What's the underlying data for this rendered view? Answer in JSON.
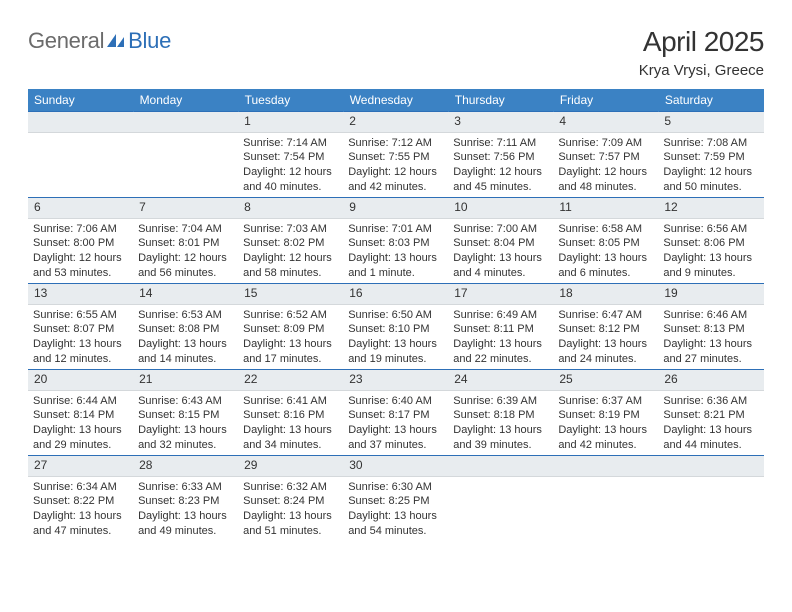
{
  "logo": {
    "text1": "General",
    "text2": "Blue"
  },
  "header": {
    "title": "April 2025",
    "location": "Krya Vrysi, Greece"
  },
  "colors": {
    "header_bg": "#3b82c4",
    "header_text": "#ffffff",
    "row_border": "#2d6fb7",
    "daynum_bg": "#e8ecef",
    "body_text": "#333333",
    "logo_gray": "#6b6b6b",
    "logo_blue": "#2d6fb7"
  },
  "typography": {
    "title_fontsize": 28,
    "location_fontsize": 15,
    "dayheader_fontsize": 12,
    "daynum_fontsize": 12,
    "body_fontsize": 11
  },
  "dayHeaders": [
    "Sunday",
    "Monday",
    "Tuesday",
    "Wednesday",
    "Thursday",
    "Friday",
    "Saturday"
  ],
  "weeks": [
    [
      {
        "n": "",
        "sunrise": "",
        "sunset": "",
        "daylight": ""
      },
      {
        "n": "",
        "sunrise": "",
        "sunset": "",
        "daylight": ""
      },
      {
        "n": "1",
        "sunrise": "Sunrise: 7:14 AM",
        "sunset": "Sunset: 7:54 PM",
        "daylight": "Daylight: 12 hours and 40 minutes."
      },
      {
        "n": "2",
        "sunrise": "Sunrise: 7:12 AM",
        "sunset": "Sunset: 7:55 PM",
        "daylight": "Daylight: 12 hours and 42 minutes."
      },
      {
        "n": "3",
        "sunrise": "Sunrise: 7:11 AM",
        "sunset": "Sunset: 7:56 PM",
        "daylight": "Daylight: 12 hours and 45 minutes."
      },
      {
        "n": "4",
        "sunrise": "Sunrise: 7:09 AM",
        "sunset": "Sunset: 7:57 PM",
        "daylight": "Daylight: 12 hours and 48 minutes."
      },
      {
        "n": "5",
        "sunrise": "Sunrise: 7:08 AM",
        "sunset": "Sunset: 7:59 PM",
        "daylight": "Daylight: 12 hours and 50 minutes."
      }
    ],
    [
      {
        "n": "6",
        "sunrise": "Sunrise: 7:06 AM",
        "sunset": "Sunset: 8:00 PM",
        "daylight": "Daylight: 12 hours and 53 minutes."
      },
      {
        "n": "7",
        "sunrise": "Sunrise: 7:04 AM",
        "sunset": "Sunset: 8:01 PM",
        "daylight": "Daylight: 12 hours and 56 minutes."
      },
      {
        "n": "8",
        "sunrise": "Sunrise: 7:03 AM",
        "sunset": "Sunset: 8:02 PM",
        "daylight": "Daylight: 12 hours and 58 minutes."
      },
      {
        "n": "9",
        "sunrise": "Sunrise: 7:01 AM",
        "sunset": "Sunset: 8:03 PM",
        "daylight": "Daylight: 13 hours and 1 minute."
      },
      {
        "n": "10",
        "sunrise": "Sunrise: 7:00 AM",
        "sunset": "Sunset: 8:04 PM",
        "daylight": "Daylight: 13 hours and 4 minutes."
      },
      {
        "n": "11",
        "sunrise": "Sunrise: 6:58 AM",
        "sunset": "Sunset: 8:05 PM",
        "daylight": "Daylight: 13 hours and 6 minutes."
      },
      {
        "n": "12",
        "sunrise": "Sunrise: 6:56 AM",
        "sunset": "Sunset: 8:06 PM",
        "daylight": "Daylight: 13 hours and 9 minutes."
      }
    ],
    [
      {
        "n": "13",
        "sunrise": "Sunrise: 6:55 AM",
        "sunset": "Sunset: 8:07 PM",
        "daylight": "Daylight: 13 hours and 12 minutes."
      },
      {
        "n": "14",
        "sunrise": "Sunrise: 6:53 AM",
        "sunset": "Sunset: 8:08 PM",
        "daylight": "Daylight: 13 hours and 14 minutes."
      },
      {
        "n": "15",
        "sunrise": "Sunrise: 6:52 AM",
        "sunset": "Sunset: 8:09 PM",
        "daylight": "Daylight: 13 hours and 17 minutes."
      },
      {
        "n": "16",
        "sunrise": "Sunrise: 6:50 AM",
        "sunset": "Sunset: 8:10 PM",
        "daylight": "Daylight: 13 hours and 19 minutes."
      },
      {
        "n": "17",
        "sunrise": "Sunrise: 6:49 AM",
        "sunset": "Sunset: 8:11 PM",
        "daylight": "Daylight: 13 hours and 22 minutes."
      },
      {
        "n": "18",
        "sunrise": "Sunrise: 6:47 AM",
        "sunset": "Sunset: 8:12 PM",
        "daylight": "Daylight: 13 hours and 24 minutes."
      },
      {
        "n": "19",
        "sunrise": "Sunrise: 6:46 AM",
        "sunset": "Sunset: 8:13 PM",
        "daylight": "Daylight: 13 hours and 27 minutes."
      }
    ],
    [
      {
        "n": "20",
        "sunrise": "Sunrise: 6:44 AM",
        "sunset": "Sunset: 8:14 PM",
        "daylight": "Daylight: 13 hours and 29 minutes."
      },
      {
        "n": "21",
        "sunrise": "Sunrise: 6:43 AM",
        "sunset": "Sunset: 8:15 PM",
        "daylight": "Daylight: 13 hours and 32 minutes."
      },
      {
        "n": "22",
        "sunrise": "Sunrise: 6:41 AM",
        "sunset": "Sunset: 8:16 PM",
        "daylight": "Daylight: 13 hours and 34 minutes."
      },
      {
        "n": "23",
        "sunrise": "Sunrise: 6:40 AM",
        "sunset": "Sunset: 8:17 PM",
        "daylight": "Daylight: 13 hours and 37 minutes."
      },
      {
        "n": "24",
        "sunrise": "Sunrise: 6:39 AM",
        "sunset": "Sunset: 8:18 PM",
        "daylight": "Daylight: 13 hours and 39 minutes."
      },
      {
        "n": "25",
        "sunrise": "Sunrise: 6:37 AM",
        "sunset": "Sunset: 8:19 PM",
        "daylight": "Daylight: 13 hours and 42 minutes."
      },
      {
        "n": "26",
        "sunrise": "Sunrise: 6:36 AM",
        "sunset": "Sunset: 8:21 PM",
        "daylight": "Daylight: 13 hours and 44 minutes."
      }
    ],
    [
      {
        "n": "27",
        "sunrise": "Sunrise: 6:34 AM",
        "sunset": "Sunset: 8:22 PM",
        "daylight": "Daylight: 13 hours and 47 minutes."
      },
      {
        "n": "28",
        "sunrise": "Sunrise: 6:33 AM",
        "sunset": "Sunset: 8:23 PM",
        "daylight": "Daylight: 13 hours and 49 minutes."
      },
      {
        "n": "29",
        "sunrise": "Sunrise: 6:32 AM",
        "sunset": "Sunset: 8:24 PM",
        "daylight": "Daylight: 13 hours and 51 minutes."
      },
      {
        "n": "30",
        "sunrise": "Sunrise: 6:30 AM",
        "sunset": "Sunset: 8:25 PM",
        "daylight": "Daylight: 13 hours and 54 minutes."
      },
      {
        "n": "",
        "sunrise": "",
        "sunset": "",
        "daylight": ""
      },
      {
        "n": "",
        "sunrise": "",
        "sunset": "",
        "daylight": ""
      },
      {
        "n": "",
        "sunrise": "",
        "sunset": "",
        "daylight": ""
      }
    ]
  ]
}
